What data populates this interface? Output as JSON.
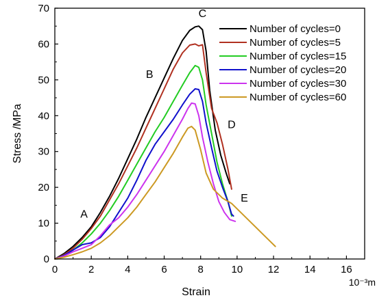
{
  "chart_data": {
    "type": "line",
    "title": "",
    "xlabel": "Strain",
    "x_unit_label": "10⁻³m",
    "ylabel": "Stress /MPa",
    "xlim": [
      0,
      17
    ],
    "ylim": [
      0,
      70
    ],
    "xticks": [
      0,
      2,
      4,
      6,
      8,
      10,
      12,
      14,
      16
    ],
    "yticks": [
      0,
      10,
      20,
      30,
      40,
      50,
      60,
      70
    ],
    "grid": false,
    "legend_position": "top-right",
    "series": [
      {
        "name": "Number of cycles=0",
        "color": "#000000",
        "x": [
          0,
          0.5,
          1,
          1.5,
          2,
          2.5,
          3,
          3.5,
          4,
          4.5,
          5,
          5.5,
          6,
          6.5,
          7,
          7.4,
          7.7,
          7.9,
          8.1,
          8.3,
          8.5,
          8.8,
          9.1,
          9.4,
          9.6
        ],
        "y": [
          0,
          1.5,
          3.5,
          6,
          9,
          13,
          17.5,
          22.5,
          28,
          33.5,
          39.5,
          45,
          50.5,
          56,
          61,
          63.8,
          64.8,
          65,
          64,
          58,
          47,
          36,
          29,
          24,
          21
        ]
      },
      {
        "name": "Number of cycles=5",
        "color": "#b03020",
        "x": [
          0,
          0.5,
          1,
          1.5,
          2,
          2.5,
          3,
          3.5,
          4,
          4.5,
          5,
          5.5,
          6,
          6.5,
          7,
          7.4,
          7.7,
          7.9,
          8.1,
          8.3,
          8.6,
          8.9,
          9.2,
          9.5,
          9.7
        ],
        "y": [
          0,
          1.2,
          3,
          5.5,
          8.5,
          12,
          16.5,
          21,
          26,
          31,
          36.5,
          42,
          47.5,
          53,
          57.5,
          59.7,
          60,
          59.5,
          59.8,
          52,
          42,
          38,
          32,
          25,
          19.5
        ]
      },
      {
        "name": "Number of cycles=15",
        "color": "#22cc22",
        "x": [
          0,
          0.5,
          1,
          1.5,
          2,
          2.5,
          3,
          3.5,
          4,
          4.5,
          5,
          5.5,
          6,
          6.5,
          7,
          7.4,
          7.7,
          7.9,
          8.1,
          8.3,
          8.6,
          8.9,
          9.2,
          9.5,
          9.7
        ],
        "y": [
          0,
          1,
          2.5,
          4.5,
          7,
          10,
          13.5,
          17.5,
          22,
          26.5,
          31,
          35.5,
          39.5,
          44,
          48.5,
          52,
          54,
          53.5,
          50,
          43,
          35,
          27,
          21,
          16,
          12
        ]
      },
      {
        "name": "Number of cycles=20",
        "color": "#1010cc",
        "x": [
          0,
          0.5,
          1,
          1.5,
          2,
          2.5,
          3,
          3.5,
          4,
          4.5,
          5,
          5.5,
          6,
          6.5,
          7,
          7.4,
          7.7,
          7.9,
          8.1,
          8.3,
          8.6,
          8.9,
          9.2,
          9.5,
          9.7,
          9.8
        ],
        "y": [
          0,
          1,
          2.5,
          4,
          4.5,
          6,
          9,
          13,
          17,
          22,
          27.5,
          32,
          35.5,
          39,
          43,
          46,
          47.5,
          47.3,
          44,
          38,
          31,
          24.5,
          20,
          16,
          12.5,
          12
        ]
      },
      {
        "name": "Number of cycles=30",
        "color": "#cc33ee",
        "x": [
          0,
          0.5,
          1,
          1.5,
          2,
          2.5,
          3,
          3.5,
          4,
          4.5,
          5,
          5.5,
          6,
          6.5,
          7,
          7.3,
          7.5,
          7.7,
          7.9,
          8.1,
          8.4,
          8.7,
          9,
          9.3,
          9.6,
          9.9
        ],
        "y": [
          0,
          0.8,
          2,
          3,
          4,
          6.5,
          9.5,
          11.5,
          14.5,
          18,
          22,
          26,
          30,
          34.5,
          39,
          42,
          43.5,
          43.3,
          40,
          34,
          27,
          21,
          16,
          13,
          11,
          10.5
        ]
      },
      {
        "name": "Number of cycles=60",
        "color": "#cc9922",
        "x": [
          0,
          0.5,
          1,
          1.5,
          2,
          2.5,
          3,
          3.5,
          4,
          4.5,
          5,
          5.5,
          6,
          6.5,
          7,
          7.3,
          7.5,
          7.7,
          8,
          8.3,
          8.7,
          9.2,
          9.7,
          10.2,
          10.7,
          11.2,
          11.7,
          12.1
        ],
        "y": [
          0,
          0.5,
          1.2,
          2,
          3,
          4.5,
          6.5,
          9,
          11.5,
          14.5,
          18,
          21.5,
          25.5,
          29.5,
          34,
          36.5,
          37,
          36,
          30.5,
          24,
          19.5,
          17,
          15.5,
          13,
          10.5,
          8,
          5.5,
          3.5
        ]
      }
    ],
    "annotations": [
      {
        "text": "A",
        "x": 1.6,
        "y": 11.5
      },
      {
        "text": "B",
        "x": 5.2,
        "y": 50.5
      },
      {
        "text": "C",
        "x": 8.1,
        "y": 67.5
      },
      {
        "text": "D",
        "x": 9.7,
        "y": 36.5
      },
      {
        "text": "E",
        "x": 10.4,
        "y": 16
      }
    ]
  }
}
